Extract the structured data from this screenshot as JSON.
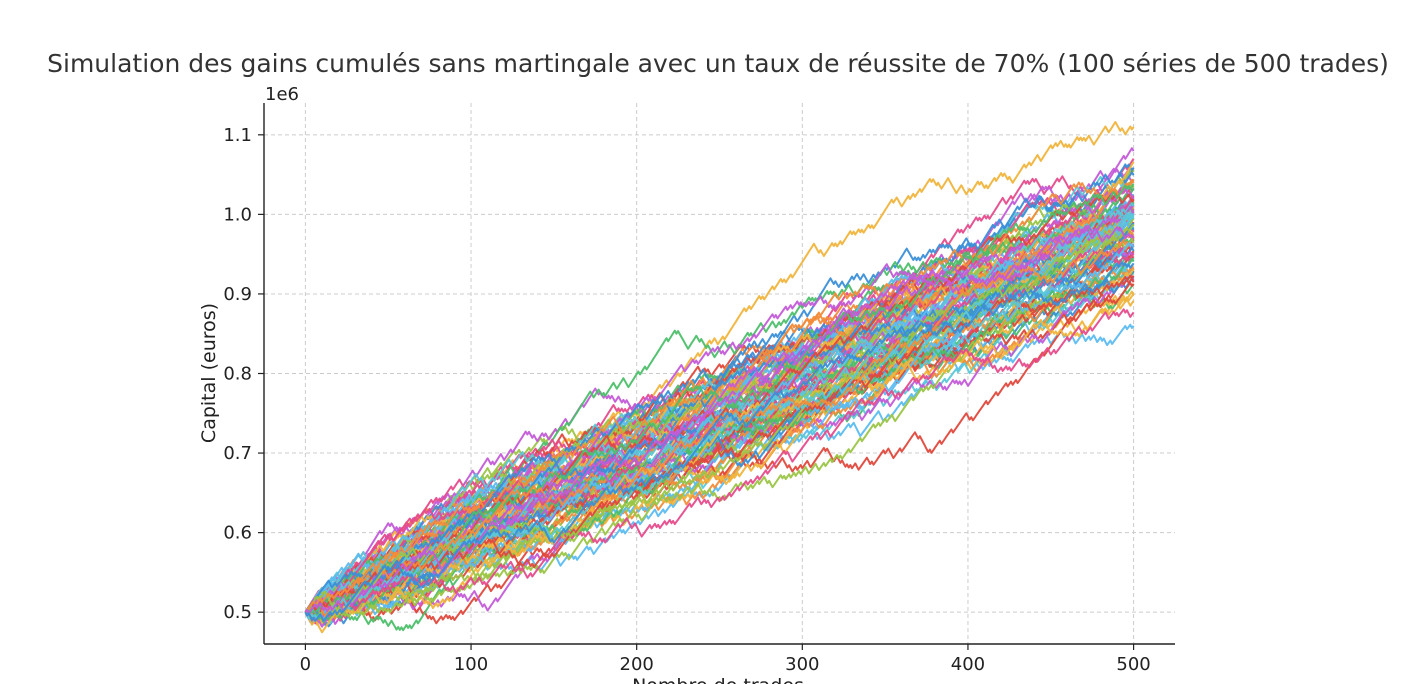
{
  "chart_data": {
    "type": "line",
    "title": "Simulation des gains cumulés sans martingale avec un taux de réussite de 70% (100 séries de 500 trades)",
    "xlabel": "Nombre de trades",
    "ylabel": "Capital (euros)",
    "y_offset_label": "1e6",
    "xlim": [
      -25,
      525
    ],
    "ylim": [
      0.46,
      1.14
    ],
    "x_ticks": [
      0,
      100,
      200,
      300,
      400,
      500
    ],
    "x_tick_labels": [
      "0",
      "100",
      "200",
      "300",
      "400",
      "500"
    ],
    "y_ticks": [
      0.5,
      0.6,
      0.7,
      0.8,
      0.9,
      1.0,
      1.1
    ],
    "y_tick_labels": [
      "0.5",
      "0.6",
      "0.7",
      "0.8",
      "0.9",
      "1.0",
      "1.1"
    ],
    "grid": true,
    "legend": "none",
    "series_count": 100,
    "trades_per_series": 500,
    "initial_capital": 0.5,
    "final_capital_range": [
      0.86,
      1.11
    ],
    "series_final_values": [
      0.86,
      0.88,
      0.89,
      0.9,
      0.91,
      0.92,
      0.93,
      0.94,
      0.95,
      0.96,
      0.97,
      0.98,
      0.99,
      1.0,
      1.01,
      1.02,
      1.03,
      1.04,
      1.05,
      1.06,
      1.07,
      1.08,
      1.09,
      1.1,
      1.11
    ],
    "colors": [
      "#5bbcf0",
      "#f0b43c",
      "#e64b8c",
      "#4cbf6a",
      "#e0483c",
      "#9bc544",
      "#5ac8d8",
      "#f28c3a",
      "#c45bd8",
      "#3a8fd8"
    ]
  }
}
